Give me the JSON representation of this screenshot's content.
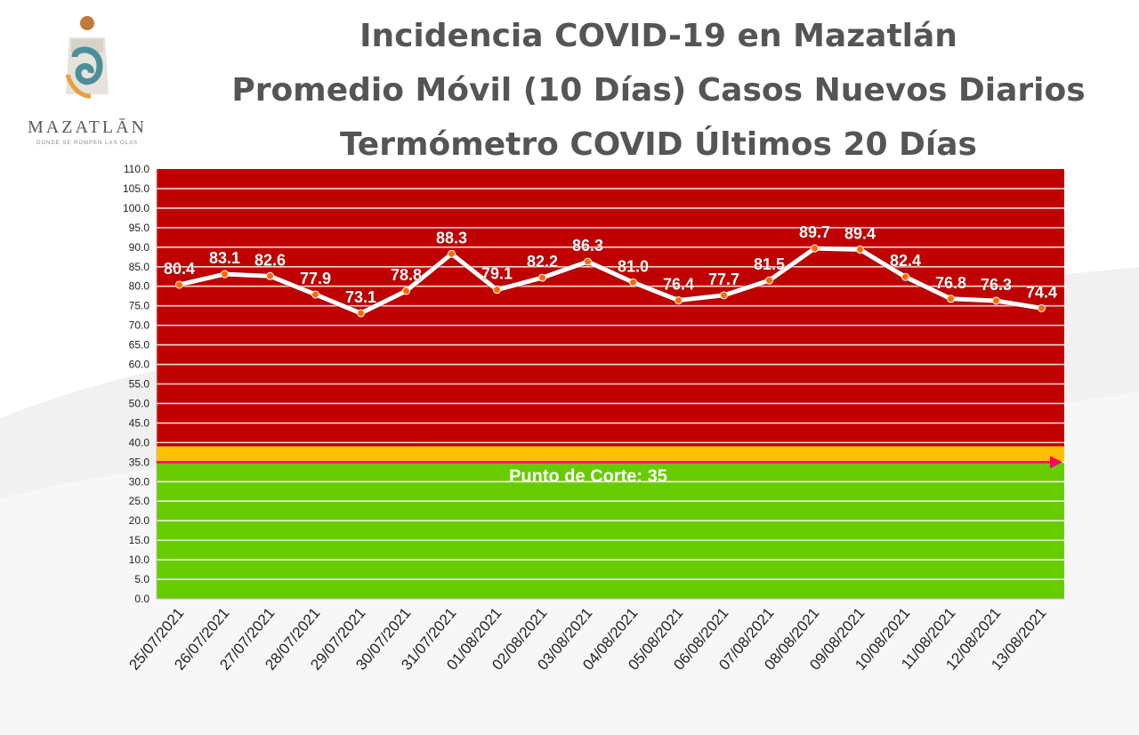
{
  "header": {
    "title_lines": [
      "Incidencia COVID-19 en Mazatlán",
      "Promedio Móvil (10 Días) Casos Nuevos Diarios",
      "Termómetro COVID Últimos 20 Días"
    ]
  },
  "logo": {
    "name": "MAZATLĀN",
    "tagline": "DONDE SE ROMPEN LAS OLAS"
  },
  "colors": {
    "danger_zone": "#c00000",
    "warning_band": "#ffc000",
    "safe_zone": "#66cc00",
    "line": "#ffffff",
    "marker": "#ff6a00",
    "cut_line": "#ff0066",
    "title": "#555555"
  },
  "chart_data": {
    "type": "line",
    "x": [
      "25/07/2021",
      "26/07/2021",
      "27/07/2021",
      "28/07/2021",
      "29/07/2021",
      "30/07/2021",
      "31/07/2021",
      "01/08/2021",
      "02/08/2021",
      "03/08/2021",
      "04/08/2021",
      "05/08/2021",
      "06/08/2021",
      "07/08/2021",
      "08/08/2021",
      "09/08/2021",
      "10/08/2021",
      "11/08/2021",
      "12/08/2021",
      "13/08/2021"
    ],
    "values": [
      80.4,
      83.1,
      82.6,
      77.9,
      73.1,
      78.8,
      88.3,
      79.1,
      82.2,
      86.3,
      81.0,
      76.4,
      77.7,
      81.5,
      89.7,
      89.4,
      82.4,
      76.8,
      76.3,
      74.4
    ],
    "ylim": [
      0,
      110
    ],
    "ytick_step": 5,
    "ytick_labels": [
      "0.0",
      "5.0",
      "10.0",
      "15.0",
      "20.0",
      "25.0",
      "30.0",
      "35.0",
      "40.0",
      "45.0",
      "50.0",
      "55.0",
      "60.0",
      "65.0",
      "70.0",
      "75.0",
      "80.0",
      "85.0",
      "90.0",
      "95.0",
      "100.0",
      "105.0",
      "110.0"
    ],
    "grid": true,
    "zones": {
      "green_max": 35,
      "yellow_max": 39,
      "red_max": 110
    },
    "cut_point": {
      "value": 35,
      "label": "Punto de Corte: 35"
    }
  }
}
